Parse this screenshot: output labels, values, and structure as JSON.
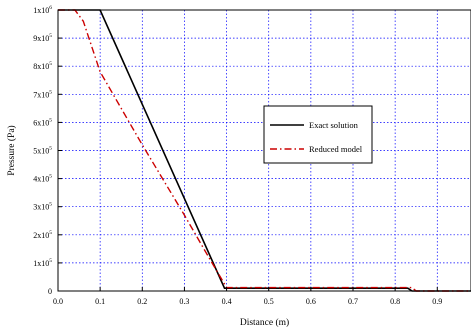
{
  "chart_data": {
    "type": "line",
    "title": "",
    "xlabel": "Distance (m)",
    "ylabel": "Pressure (Pa)",
    "xlim": [
      0.0,
      0.98
    ],
    "ylim": [
      0,
      1000000
    ],
    "x_ticks": [
      0.0,
      0.1,
      0.2,
      0.3,
      0.4,
      0.5,
      0.6,
      0.7,
      0.8,
      0.9
    ],
    "x_tick_labels": [
      "0.0",
      "0.1",
      "0.2",
      "0.3",
      "0.4",
      "0.5",
      "0.6",
      "0.7",
      "0.8",
      "0.9"
    ],
    "y_ticks": [
      0,
      100000,
      200000,
      300000,
      400000,
      500000,
      600000,
      700000,
      800000,
      900000,
      1000000
    ],
    "y_tick_labels": [
      {
        "base": "0",
        "exp": ""
      },
      {
        "base": "1x10",
        "exp": "5"
      },
      {
        "base": "2x10",
        "exp": "5"
      },
      {
        "base": "3x10",
        "exp": "5"
      },
      {
        "base": "4x10",
        "exp": "5"
      },
      {
        "base": "5x10",
        "exp": "5"
      },
      {
        "base": "6x10",
        "exp": "5"
      },
      {
        "base": "7x10",
        "exp": "5"
      },
      {
        "base": "8x10",
        "exp": "5"
      },
      {
        "base": "9x10",
        "exp": "5"
      },
      {
        "base": "1x10",
        "exp": "6"
      }
    ],
    "grid": true,
    "grid_color": "#0000ff",
    "legend_position": "center-right",
    "series": [
      {
        "name": "Exact solution",
        "color": "#000000",
        "dash": "solid",
        "x": [
          0.0,
          0.1,
          0.395,
          0.83,
          0.84,
          0.98
        ],
        "y": [
          1000000,
          1000000,
          10000,
          10000,
          0,
          0
        ]
      },
      {
        "name": "Reduced model",
        "color": "#cc0000",
        "dash": "dashdot",
        "x": [
          0.0,
          0.04,
          0.06,
          0.1,
          0.2,
          0.3,
          0.35,
          0.385,
          0.4,
          0.41,
          0.84,
          0.85,
          0.98
        ],
        "y": [
          1000000,
          1000000,
          960000,
          780000,
          520000,
          270000,
          140000,
          50000,
          12000,
          12000,
          12000,
          0,
          0
        ]
      }
    ]
  }
}
